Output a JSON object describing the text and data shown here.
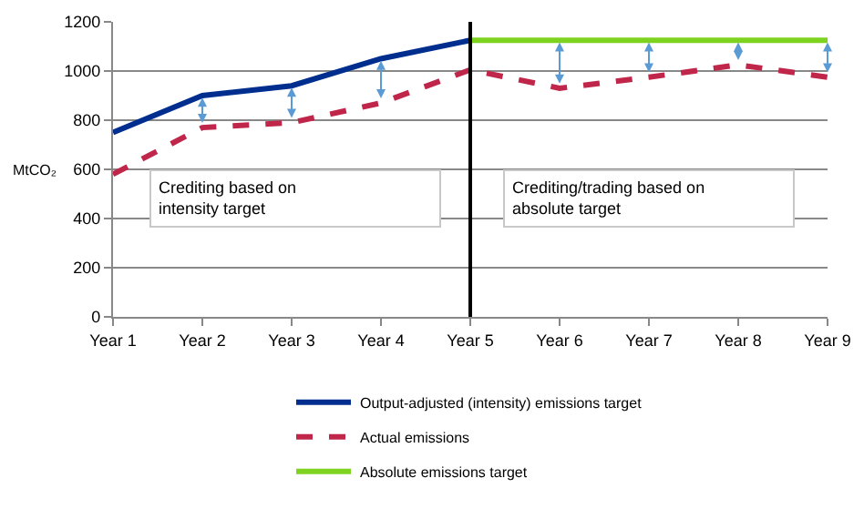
{
  "chart_data": {
    "type": "line",
    "ylabel": "MtCO₂",
    "categories": [
      "Year 1",
      "Year 2",
      "Year 3",
      "Year 4",
      "Year 5",
      "Year 6",
      "Year 7",
      "Year 8",
      "Year 9"
    ],
    "series": [
      {
        "name": "Output-adjusted (intensity) emissions target",
        "color": "#002e8f",
        "values": [
          750,
          900,
          940,
          1050,
          1125,
          null,
          null,
          null,
          null
        ],
        "line_style": "solid"
      },
      {
        "name": "Actual emissions",
        "color": "#c0264a",
        "values": [
          580,
          770,
          790,
          870,
          1005,
          930,
          975,
          1025,
          975
        ],
        "line_style": "dashed"
      },
      {
        "name": "Absolute emissions target",
        "color": "#7ed321",
        "values": [
          null,
          null,
          null,
          null,
          1125,
          1125,
          1125,
          1125,
          1125
        ],
        "line_style": "solid"
      }
    ],
    "ylim": [
      0,
      1200
    ],
    "yticks": [
      0,
      200,
      400,
      600,
      800,
      1000,
      1200
    ],
    "grid": "y",
    "legend": "bottom",
    "marker": "none",
    "ref_lines": [
      {
        "axis": "x",
        "value": "Year 5",
        "color": "#000000"
      }
    ],
    "annotations": [
      "Crediting based on intensity target",
      "Crediting/trading based on absolute target"
    ]
  }
}
